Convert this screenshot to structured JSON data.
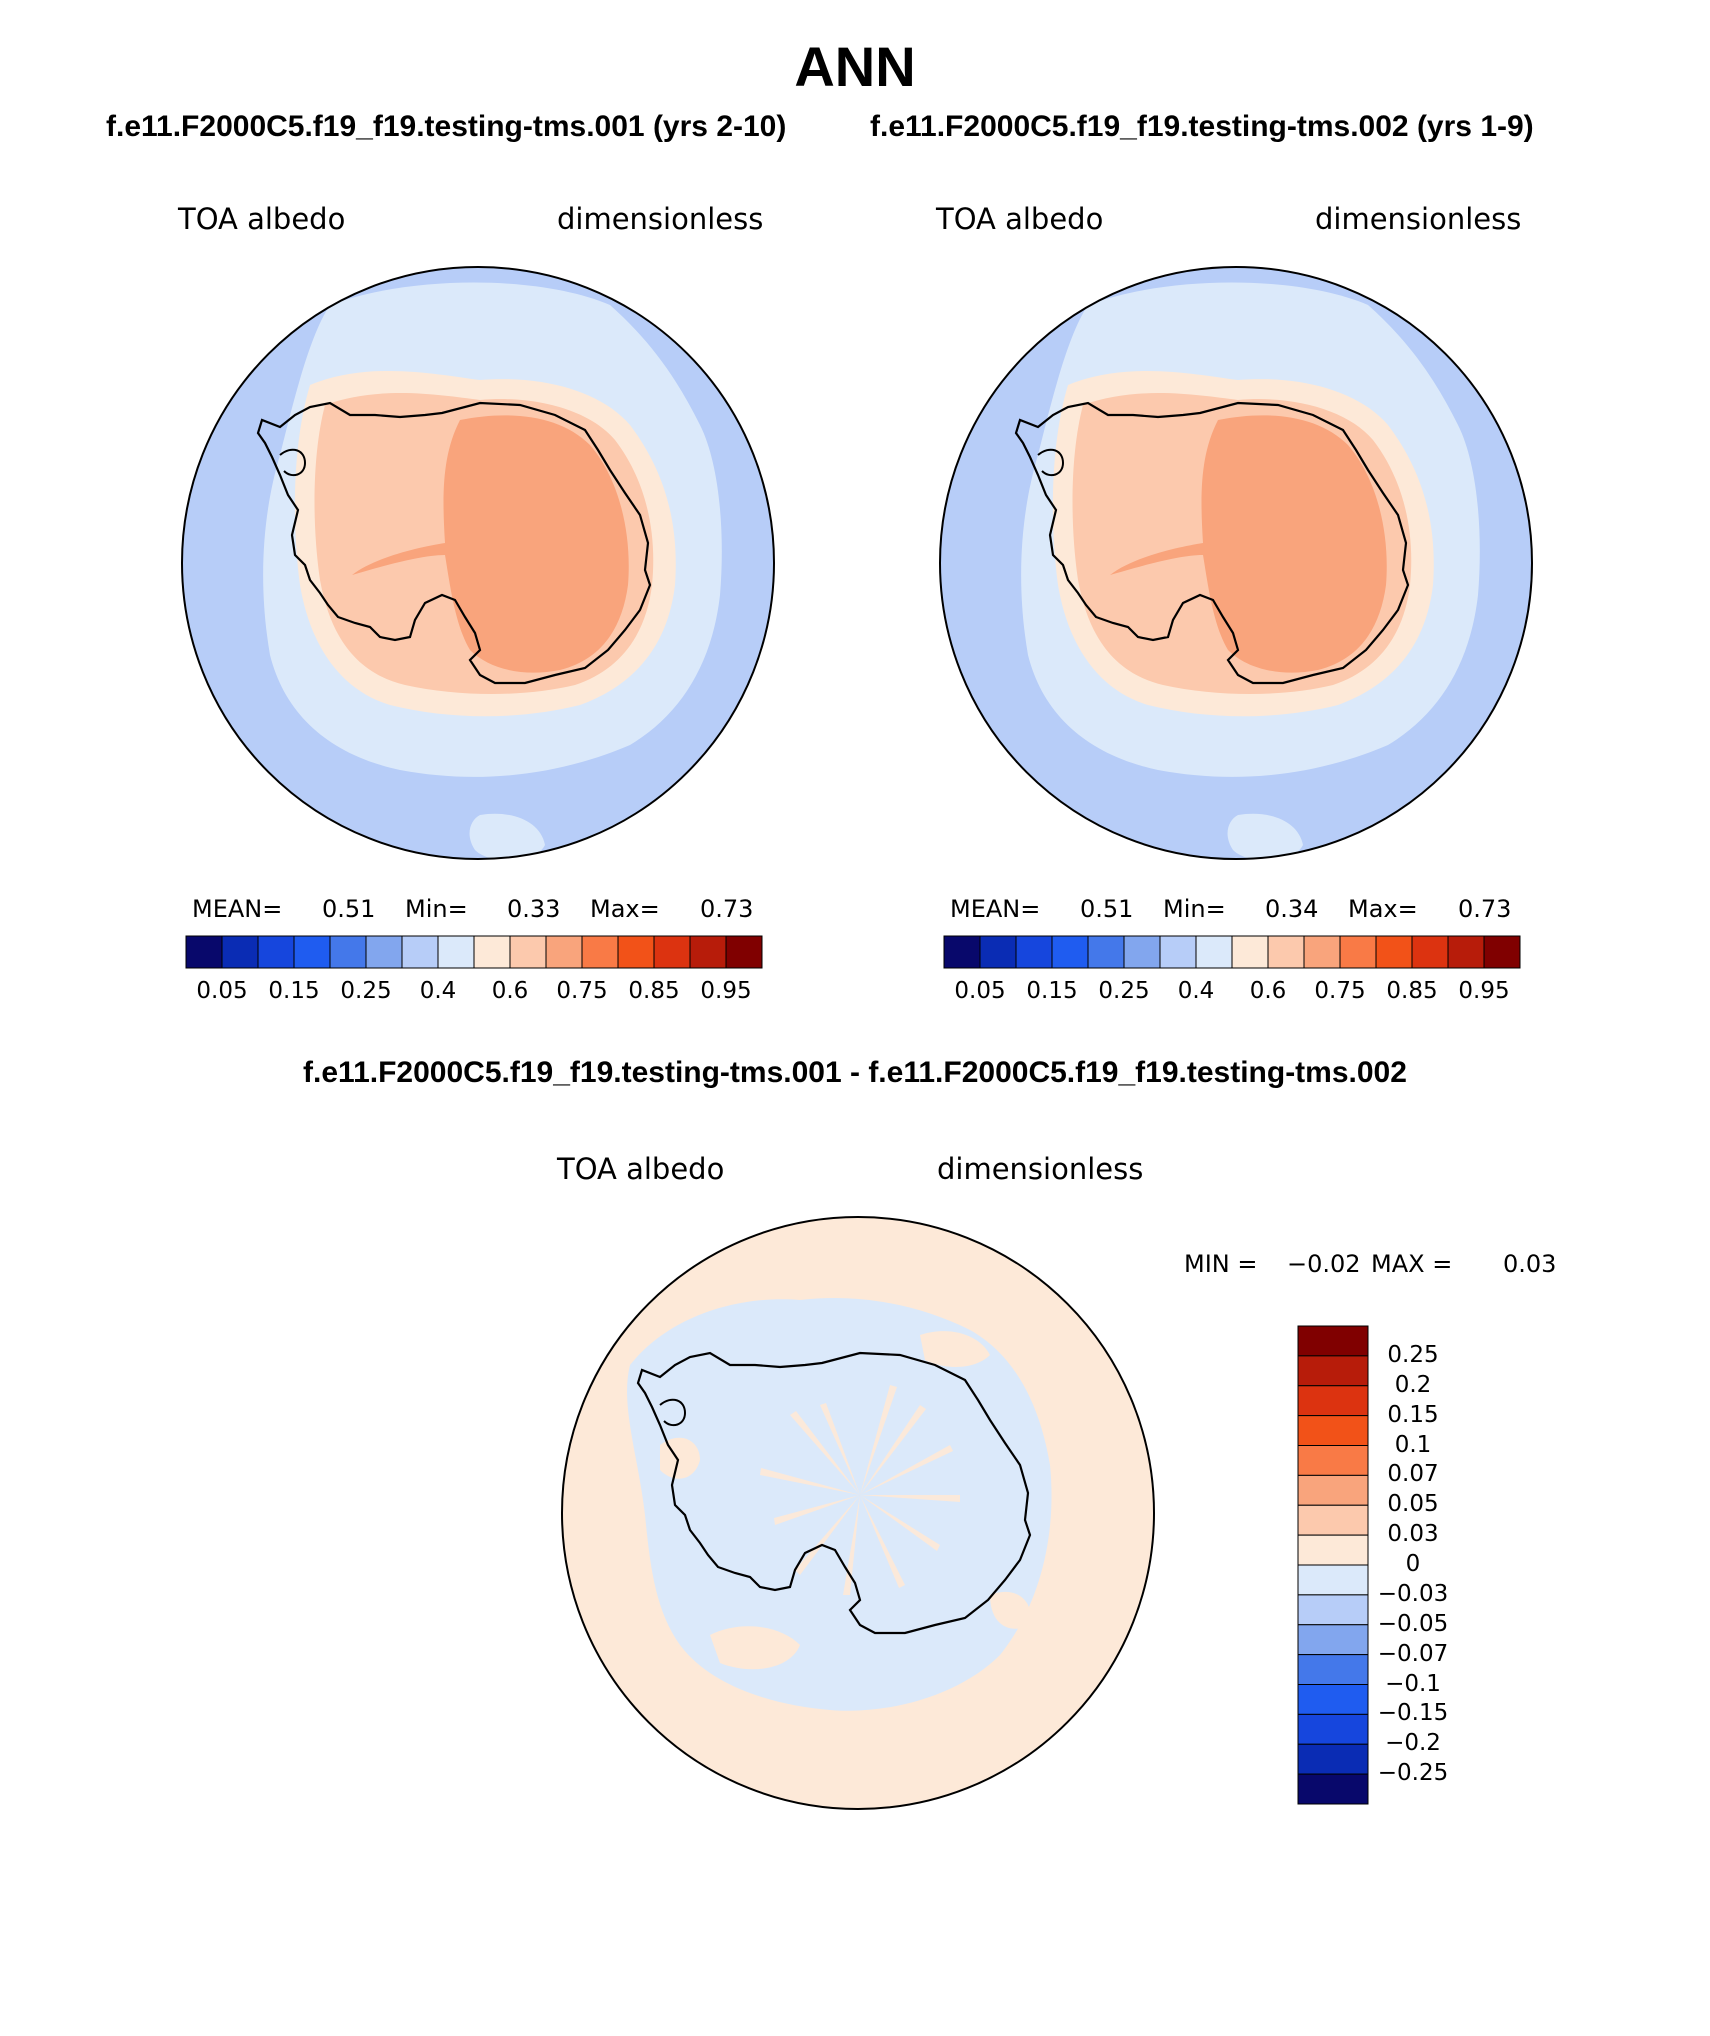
{
  "title": "ANN",
  "case1_title": "f.e11.F2000C5.f19_f19.testing-tms.001 (yrs 2-10)",
  "case2_title": "f.e11.F2000C5.f19_f19.testing-tms.002 (yrs 1-9)",
  "diff_title": "f.e11.F2000C5.f19_f19.testing-tms.001 - f.e11.F2000C5.f19_f19.testing-tms.002",
  "chart_data": [
    {
      "type": "heatmap",
      "projection": "south-polar stereographic",
      "left_label": "TOA albedo",
      "right_label": "dimensionless",
      "stats": {
        "mean_label": "MEAN=",
        "mean": "0.51",
        "min_label": "Min=",
        "min": "0.33",
        "max_label": "Max=",
        "max": "0.73"
      },
      "colorbar_levels": [
        "0.05",
        "0.15",
        "0.25",
        "0.4",
        "0.6",
        "0.75",
        "0.85",
        "0.95"
      ]
    },
    {
      "type": "heatmap",
      "projection": "south-polar stereographic",
      "left_label": "TOA albedo",
      "right_label": "dimensionless",
      "stats": {
        "mean_label": "MEAN=",
        "mean": "0.51",
        "min_label": "Min=",
        "min": "0.34",
        "max_label": "Max=",
        "max": "0.73"
      },
      "colorbar_levels": [
        "0.05",
        "0.15",
        "0.25",
        "0.4",
        "0.6",
        "0.75",
        "0.85",
        "0.95"
      ]
    },
    {
      "type": "heatmap",
      "projection": "south-polar stereographic",
      "left_label": "TOA albedo",
      "right_label": "dimensionless",
      "stats": {
        "min_label": "MIN =",
        "min": "−0.02",
        "max_label": "MAX =",
        "max": "0.03"
      },
      "colorbar_levels": [
        "0.25",
        "0.2",
        "0.15",
        "0.1",
        "0.07",
        "0.05",
        "0.03",
        "0",
        "−0.03",
        "−0.05",
        "−0.07",
        "−0.1",
        "−0.15",
        "−0.2",
        "−0.25"
      ]
    }
  ],
  "colors": {
    "palette16": [
      "#08086b",
      "#0a2cb4",
      "#1646dd",
      "#1f5cf0",
      "#4478ea",
      "#82a6ee",
      "#b7cdf8",
      "#dbe9fa",
      "#fde9d8",
      "#fcc9ad",
      "#f9a47c",
      "#f97a46",
      "#f25218",
      "#dc3310",
      "#b71c0a",
      "#800000"
    ],
    "map_ocean_far": "#b7cdf8",
    "map_ocean_near": "#dbe9fa",
    "map_shelf": "#fde9d8",
    "map_coast": "#fcc9ad",
    "map_interior": "#f9a47c",
    "diff_background": "#fde9d8",
    "diff_negative": "#dbe9fa"
  }
}
